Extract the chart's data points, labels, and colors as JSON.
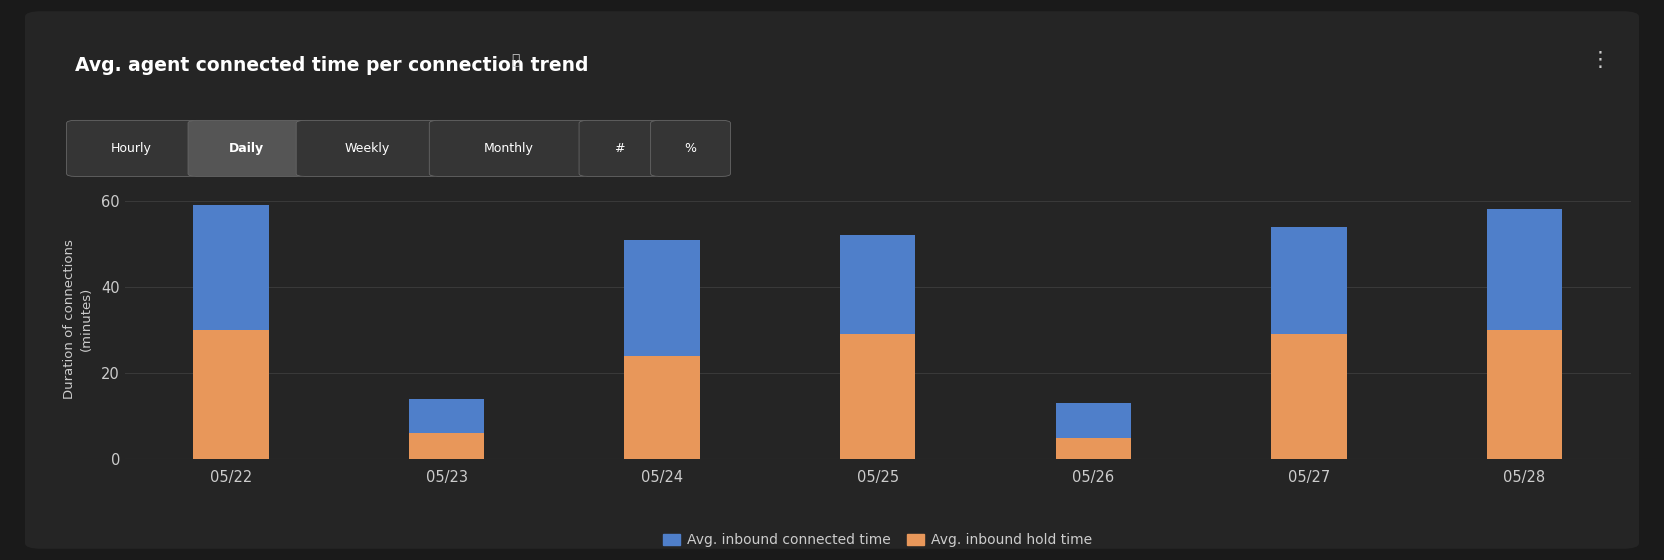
{
  "title_plain": "Avg. agent connected time per connection trend",
  "info_icon": "ⓘ",
  "ylabel": "Duration of connections\n(minutes)",
  "categories": [
    "05/22",
    "05/23",
    "05/24",
    "05/25",
    "05/26",
    "05/27",
    "05/28"
  ],
  "hold_values": [
    30,
    6,
    24,
    29,
    5,
    29,
    30
  ],
  "connected_values": [
    29,
    8,
    27,
    23,
    8,
    25,
    28
  ],
  "hold_color": "#E8975A",
  "connected_color": "#4F7FCA",
  "outer_bg_color": "#1A1A1A",
  "card_bg_color": "#252525",
  "axes_bg_color": "#252525",
  "text_color": "#CCCCCC",
  "grid_color": "#3A3A3A",
  "ylim": [
    0,
    65
  ],
  "yticks": [
    0,
    20,
    40,
    60
  ],
  "legend_labels": [
    "Avg. inbound connected time",
    "Avg. inbound hold time"
  ],
  "tab_labels": [
    "Hourly",
    "Daily",
    "Weekly",
    "Monthly",
    "#",
    "%"
  ],
  "active_tab": "Daily",
  "bar_width": 0.35,
  "dots_icon": "⋮"
}
